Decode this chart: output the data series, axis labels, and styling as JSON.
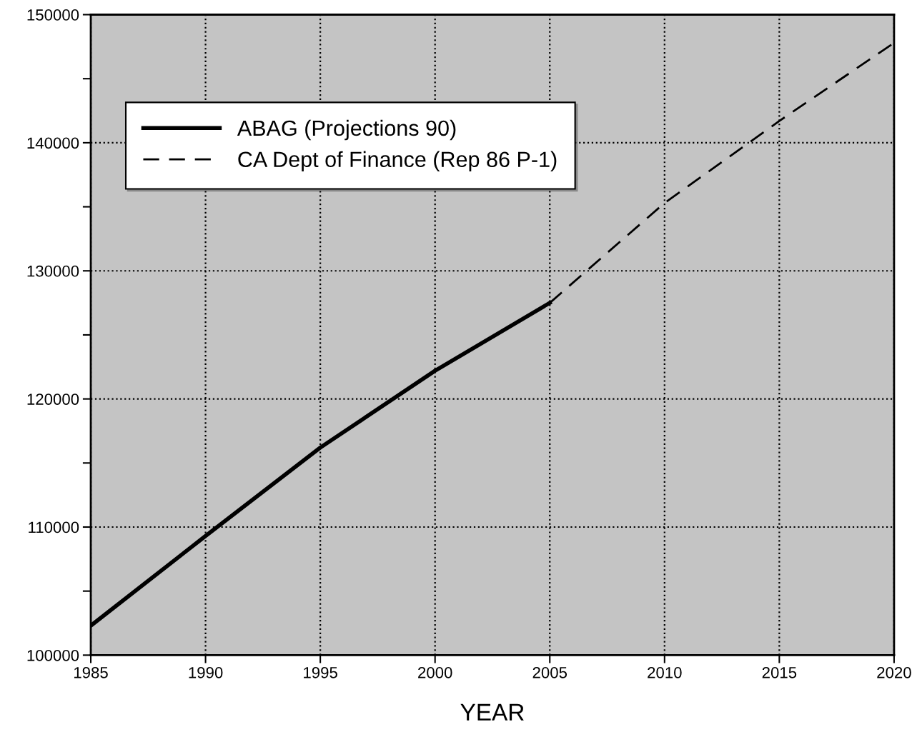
{
  "chart_data": {
    "type": "line",
    "xlabel": "YEAR",
    "series": [
      {
        "name": "ABAG (Projections 90)",
        "color": "#000000",
        "line_style": "solid",
        "x": [
          1985,
          1990,
          1995,
          2000,
          2005
        ],
        "values": [
          102300,
          109300,
          116200,
          122200,
          127500
        ]
      },
      {
        "name": "CA Dept of Finance (Rep 86 P-1)",
        "color": "#000000",
        "line_style": "dashed",
        "x": [
          2005,
          2010,
          2015,
          2020
        ],
        "values": [
          127500,
          135300,
          141700,
          147800
        ]
      }
    ],
    "xlim": [
      1985,
      2020
    ],
    "xticks": [
      1985,
      1990,
      1995,
      2000,
      2005,
      2010,
      2015,
      2020
    ],
    "ylim": [
      100000,
      150000
    ],
    "yticks": [
      100000,
      {
        "value": 105000,
        "label": null
      },
      110000,
      {
        "value": 115000,
        "label": null
      },
      120000,
      {
        "value": 125000,
        "label": null
      },
      130000,
      {
        "value": 135000,
        "label": null
      },
      140000,
      {
        "value": 145000,
        "label": null
      },
      150000
    ],
    "grid": true,
    "legend": "top left",
    "marker": "none"
  }
}
